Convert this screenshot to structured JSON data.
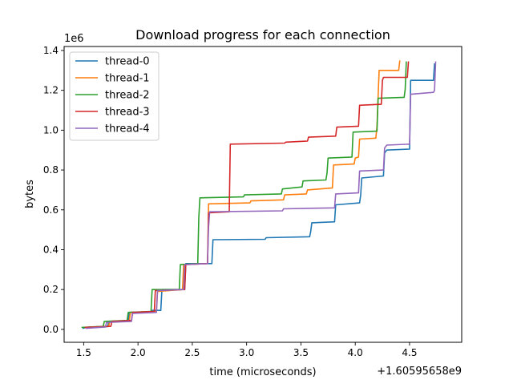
{
  "chart_data": {
    "type": "line",
    "title": "Download progress for each connection",
    "xlabel": "time (microseconds)",
    "ylabel": "bytes",
    "x_offset_label": "+1.60595658e9",
    "y_multiplier_label": "1e6",
    "xlim": [
      1.32,
      4.98
    ],
    "ylim": [
      -0.065,
      1.42
    ],
    "x_ticks": [
      1.5,
      2.0,
      2.5,
      3.0,
      3.5,
      4.0,
      4.5
    ],
    "x_tick_labels": [
      "1.5",
      "2.0",
      "2.5",
      "3.0",
      "3.5",
      "4.0",
      "4.5"
    ],
    "y_ticks": [
      0.0,
      0.2,
      0.4,
      0.6,
      0.8,
      1.0,
      1.2,
      1.4
    ],
    "y_tick_labels": [
      "0.0",
      "0.2",
      "0.4",
      "0.6",
      "0.8",
      "1.0",
      "1.2",
      "1.4"
    ],
    "grid": false,
    "legend_position": "top-left",
    "series": [
      {
        "name": "thread-0",
        "color": "#1f77b4",
        "points": [
          [
            1.49,
            0.005
          ],
          [
            1.55,
            0.012
          ],
          [
            1.72,
            0.014
          ],
          [
            1.73,
            0.04
          ],
          [
            1.91,
            0.042
          ],
          [
            1.92,
            0.085
          ],
          [
            2.12,
            0.088
          ],
          [
            2.13,
            0.095
          ],
          [
            2.21,
            0.095
          ],
          [
            2.22,
            0.2
          ],
          [
            2.43,
            0.2
          ],
          [
            2.44,
            0.33
          ],
          [
            2.68,
            0.33
          ],
          [
            2.69,
            0.45
          ],
          [
            3.17,
            0.452
          ],
          [
            3.18,
            0.46
          ],
          [
            3.58,
            0.465
          ],
          [
            3.59,
            0.49
          ],
          [
            3.6,
            0.535
          ],
          [
            3.81,
            0.54
          ],
          [
            3.82,
            0.625
          ],
          [
            4.04,
            0.635
          ],
          [
            4.05,
            0.675
          ],
          [
            4.06,
            0.76
          ],
          [
            4.26,
            0.77
          ],
          [
            4.27,
            0.885
          ],
          [
            4.29,
            0.9
          ],
          [
            4.5,
            0.905
          ],
          [
            4.51,
            1.25
          ],
          [
            4.72,
            1.25
          ],
          [
            4.73,
            1.335
          ]
        ]
      },
      {
        "name": "thread-1",
        "color": "#ff7f0e",
        "points": [
          [
            1.51,
            0.01
          ],
          [
            1.73,
            0.015
          ],
          [
            1.74,
            0.04
          ],
          [
            1.92,
            0.045
          ],
          [
            1.93,
            0.085
          ],
          [
            2.17,
            0.09
          ],
          [
            2.18,
            0.19
          ],
          [
            2.41,
            0.2
          ],
          [
            2.42,
            0.325
          ],
          [
            2.64,
            0.33
          ],
          [
            2.65,
            0.63
          ],
          [
            3.03,
            0.635
          ],
          [
            3.04,
            0.645
          ],
          [
            3.34,
            0.65
          ],
          [
            3.35,
            0.675
          ],
          [
            3.55,
            0.68
          ],
          [
            3.56,
            0.7
          ],
          [
            3.79,
            0.71
          ],
          [
            3.8,
            0.825
          ],
          [
            3.99,
            0.83
          ],
          [
            4.0,
            0.86
          ],
          [
            4.03,
            0.865
          ],
          [
            4.04,
            0.955
          ],
          [
            4.19,
            0.96
          ],
          [
            4.2,
            1.02
          ],
          [
            4.22,
            1.3
          ],
          [
            4.4,
            1.3
          ],
          [
            4.41,
            1.35
          ]
        ]
      },
      {
        "name": "thread-2",
        "color": "#2ca02c",
        "points": [
          [
            1.48,
            0.01
          ],
          [
            1.68,
            0.015
          ],
          [
            1.69,
            0.04
          ],
          [
            1.9,
            0.045
          ],
          [
            1.91,
            0.085
          ],
          [
            2.12,
            0.09
          ],
          [
            2.13,
            0.2
          ],
          [
            2.38,
            0.2
          ],
          [
            2.39,
            0.325
          ],
          [
            2.55,
            0.33
          ],
          [
            2.56,
            0.56
          ],
          [
            2.57,
            0.66
          ],
          [
            2.97,
            0.665
          ],
          [
            2.98,
            0.675
          ],
          [
            3.32,
            0.68
          ],
          [
            3.33,
            0.705
          ],
          [
            3.51,
            0.715
          ],
          [
            3.52,
            0.745
          ],
          [
            3.73,
            0.75
          ],
          [
            3.74,
            0.785
          ],
          [
            3.75,
            0.86
          ],
          [
            3.97,
            0.865
          ],
          [
            3.98,
            0.99
          ],
          [
            4.2,
            0.995
          ],
          [
            4.21,
            1.16
          ],
          [
            4.45,
            1.165
          ],
          [
            4.46,
            1.205
          ],
          [
            4.47,
            1.345
          ]
        ]
      },
      {
        "name": "thread-3",
        "color": "#d62728",
        "points": [
          [
            1.51,
            0.01
          ],
          [
            1.75,
            0.015
          ],
          [
            1.76,
            0.04
          ],
          [
            1.94,
            0.045
          ],
          [
            1.95,
            0.085
          ],
          [
            2.15,
            0.09
          ],
          [
            2.16,
            0.195
          ],
          [
            2.43,
            0.2
          ],
          [
            2.44,
            0.325
          ],
          [
            2.64,
            0.33
          ],
          [
            2.65,
            0.585
          ],
          [
            2.84,
            0.59
          ],
          [
            2.85,
            0.93
          ],
          [
            3.35,
            0.935
          ],
          [
            3.36,
            0.94
          ],
          [
            3.56,
            0.945
          ],
          [
            3.57,
            0.965
          ],
          [
            3.82,
            0.97
          ],
          [
            3.83,
            1.015
          ],
          [
            4.03,
            1.02
          ],
          [
            4.04,
            1.125
          ],
          [
            4.24,
            1.13
          ],
          [
            4.25,
            1.25
          ],
          [
            4.26,
            1.265
          ],
          [
            4.48,
            1.265
          ],
          [
            4.49,
            1.345
          ]
        ]
      },
      {
        "name": "thread-4",
        "color": "#9467bd",
        "points": [
          [
            1.52,
            0.005
          ],
          [
            1.7,
            0.012
          ],
          [
            1.71,
            0.035
          ],
          [
            1.94,
            0.04
          ],
          [
            1.95,
            0.08
          ],
          [
            2.17,
            0.085
          ],
          [
            2.18,
            0.195
          ],
          [
            2.42,
            0.2
          ],
          [
            2.43,
            0.325
          ],
          [
            2.64,
            0.33
          ],
          [
            2.65,
            0.515
          ],
          [
            2.66,
            0.59
          ],
          [
            3.33,
            0.595
          ],
          [
            3.34,
            0.605
          ],
          [
            3.81,
            0.61
          ],
          [
            3.82,
            0.68
          ],
          [
            4.03,
            0.685
          ],
          [
            4.04,
            0.795
          ],
          [
            4.26,
            0.8
          ],
          [
            4.27,
            0.91
          ],
          [
            4.29,
            0.925
          ],
          [
            4.5,
            0.93
          ],
          [
            4.51,
            1.18
          ],
          [
            4.72,
            1.19
          ],
          [
            4.73,
            1.2
          ],
          [
            4.74,
            1.345
          ]
        ]
      }
    ]
  }
}
